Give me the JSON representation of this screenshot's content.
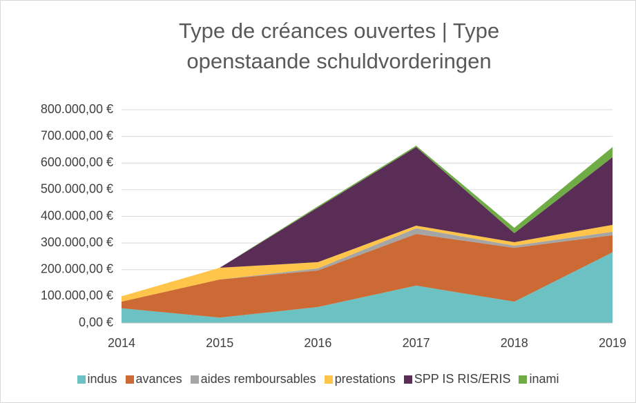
{
  "chart_data": {
    "type": "stacked_area",
    "title": "Type de créances ouvertes | Type openstaande schuldvorderingen",
    "x": [
      2014,
      2015,
      2016,
      2017,
      2018,
      2019
    ],
    "xlim": [
      2014,
      2019
    ],
    "xticks": [
      2014,
      2015,
      2016,
      2017,
      2018,
      2019
    ],
    "ylim": [
      0,
      800000
    ],
    "yticks": [
      {
        "value": 0,
        "label": "0,00 €"
      },
      {
        "value": 100000,
        "label": "100.000,00 €"
      },
      {
        "value": 200000,
        "label": "200.000,00 €"
      },
      {
        "value": 300000,
        "label": "300.000,00 €"
      },
      {
        "value": 400000,
        "label": "400.000,00 €"
      },
      {
        "value": 500000,
        "label": "500.000,00 €"
      },
      {
        "value": 600000,
        "label": "600.000,00 €"
      },
      {
        "value": 700000,
        "label": "700.000,00 €"
      },
      {
        "value": 800000,
        "label": "800.000,00 €"
      }
    ],
    "grid": true,
    "legend": "bottom",
    "series": [
      {
        "name": "indus",
        "color": "#6cc2c2",
        "values": [
          55000,
          20000,
          60000,
          140000,
          80000,
          265000
        ]
      },
      {
        "name": "avances",
        "color": "#cc6a35",
        "values": [
          25000,
          143000,
          137000,
          194000,
          202000,
          64000
        ]
      },
      {
        "name": "aides remboursables",
        "color": "#a5a5a5",
        "values": [
          0,
          0,
          8000,
          21000,
          8000,
          13000
        ]
      },
      {
        "name": "prestations",
        "color": "#ffc44a",
        "values": [
          20000,
          44000,
          23000,
          10000,
          13000,
          26000
        ]
      },
      {
        "name": "SPP IS RIS/ERIS",
        "color": "#5a2d57",
        "values": [
          0,
          0,
          205000,
          295000,
          34000,
          254000
        ]
      },
      {
        "name": "inami",
        "color": "#6fac46",
        "values": [
          0,
          0,
          5000,
          5000,
          20000,
          38000
        ]
      }
    ]
  }
}
